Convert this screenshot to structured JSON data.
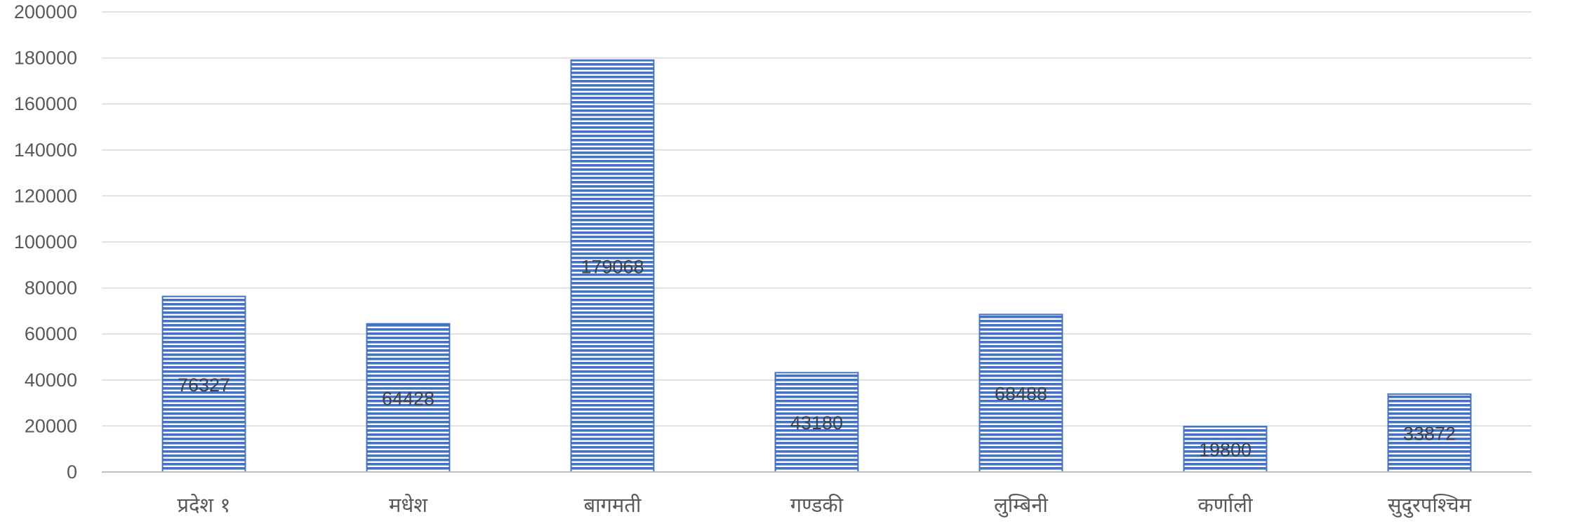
{
  "chart_data": {
    "type": "bar",
    "categories": [
      "प्रदेश १",
      "मधेश",
      "बागमती",
      "गण्डकी",
      "लुम्बिनी",
      "कर्णाली",
      "सुदुरपश्चिम"
    ],
    "values": [
      76327,
      64428,
      179068,
      43180,
      68488,
      19800,
      33872
    ],
    "data_labels": [
      "76327",
      "64428",
      "179068",
      "43180",
      "68488",
      "19800",
      "33872"
    ],
    "yticks": [
      "0",
      "20000",
      "40000",
      "60000",
      "80000",
      "100000",
      "120000",
      "140000",
      "160000",
      "180000",
      "200000"
    ],
    "ylim": [
      0,
      200000
    ],
    "grid": true,
    "legend": "none",
    "bar_color": "#4472c4",
    "bar_pattern": "horizontal-stripes"
  }
}
